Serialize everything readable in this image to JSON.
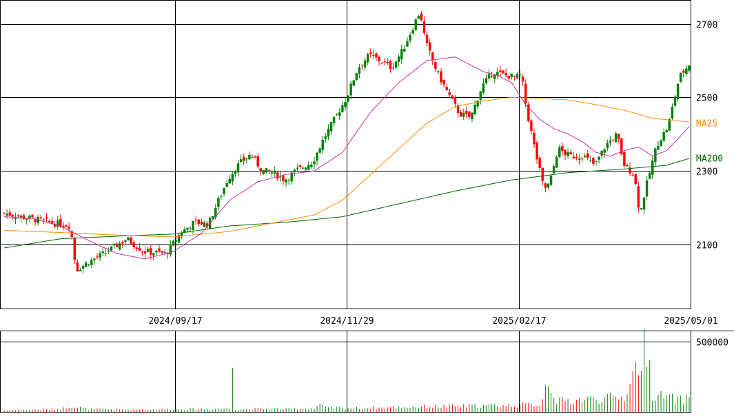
{
  "chart_data": {
    "type": "candlestick",
    "price_panel": {
      "y_ticks": [
        "2700",
        "2500",
        "2300",
        "2100"
      ],
      "y_tick_values": [
        2700,
        2500,
        2300,
        2100
      ],
      "ylim": [
        1925,
        2765
      ],
      "x_tick_labels": [
        "2024/09/17",
        "2024/11/29",
        "2025/02/17",
        "2025/05/01"
      ],
      "x_tick_indices": [
        61,
        122,
        183,
        244
      ],
      "n_bars": 244,
      "grid": true,
      "indicators": [
        {
          "name": "MA25",
          "color": "#ff8c00",
          "last_value": 2430
        },
        {
          "name": "MA200",
          "color": "#006400",
          "last_value": 2335
        }
      ],
      "ma25_anchors": [
        [
          0,
          2138
        ],
        [
          20,
          2132
        ],
        [
          40,
          2125
        ],
        [
          60,
          2120
        ],
        [
          80,
          2135
        ],
        [
          100,
          2165
        ],
        [
          110,
          2180
        ],
        [
          120,
          2220
        ],
        [
          130,
          2290
        ],
        [
          140,
          2360
        ],
        [
          150,
          2430
        ],
        [
          160,
          2475
        ],
        [
          170,
          2490
        ],
        [
          180,
          2500
        ],
        [
          190,
          2497
        ],
        [
          200,
          2493
        ],
        [
          210,
          2480
        ],
        [
          220,
          2465
        ],
        [
          230,
          2443
        ],
        [
          244,
          2432
        ]
      ],
      "ma200_anchors": [
        [
          0,
          2090
        ],
        [
          20,
          2115
        ],
        [
          40,
          2122
        ],
        [
          60,
          2128
        ],
        [
          80,
          2150
        ],
        [
          100,
          2160
        ],
        [
          120,
          2175
        ],
        [
          140,
          2210
        ],
        [
          160,
          2245
        ],
        [
          180,
          2275
        ],
        [
          200,
          2295
        ],
        [
          220,
          2305
        ],
        [
          235,
          2315
        ],
        [
          244,
          2336
        ]
      ],
      "ma_pink_anchors": [
        [
          0,
          2175
        ],
        [
          10,
          2170
        ],
        [
          20,
          2150
        ],
        [
          30,
          2110
        ],
        [
          40,
          2075
        ],
        [
          50,
          2060
        ],
        [
          60,
          2080
        ],
        [
          70,
          2130
        ],
        [
          80,
          2220
        ],
        [
          90,
          2270
        ],
        [
          100,
          2290
        ],
        [
          110,
          2300
        ],
        [
          120,
          2350
        ],
        [
          130,
          2460
        ],
        [
          140,
          2540
        ],
        [
          150,
          2600
        ],
        [
          160,
          2610
        ],
        [
          165,
          2590
        ],
        [
          170,
          2570
        ],
        [
          175,
          2560
        ],
        [
          180,
          2540
        ],
        [
          185,
          2480
        ],
        [
          190,
          2440
        ],
        [
          195,
          2415
        ],
        [
          200,
          2400
        ],
        [
          205,
          2380
        ],
        [
          210,
          2350
        ],
        [
          215,
          2340
        ],
        [
          220,
          2355
        ],
        [
          225,
          2365
        ],
        [
          230,
          2340
        ],
        [
          235,
          2355
        ],
        [
          240,
          2395
        ],
        [
          244,
          2430
        ]
      ],
      "price_anchors": [
        [
          0,
          2185
        ],
        [
          10,
          2170
        ],
        [
          20,
          2155
        ],
        [
          24,
          2150
        ],
        [
          26,
          2030
        ],
        [
          30,
          2050
        ],
        [
          36,
          2075
        ],
        [
          44,
          2115
        ],
        [
          50,
          2080
        ],
        [
          58,
          2075
        ],
        [
          63,
          2130
        ],
        [
          68,
          2160
        ],
        [
          73,
          2155
        ],
        [
          76,
          2210
        ],
        [
          80,
          2280
        ],
        [
          84,
          2320
        ],
        [
          88,
          2345
        ],
        [
          92,
          2300
        ],
        [
          96,
          2295
        ],
        [
          100,
          2275
        ],
        [
          104,
          2300
        ],
        [
          110,
          2325
        ],
        [
          114,
          2390
        ],
        [
          118,
          2445
        ],
        [
          122,
          2500
        ],
        [
          126,
          2580
        ],
        [
          130,
          2615
        ],
        [
          134,
          2600
        ],
        [
          138,
          2580
        ],
        [
          142,
          2630
        ],
        [
          146,
          2700
        ],
        [
          148,
          2735
        ],
        [
          150,
          2650
        ],
        [
          154,
          2570
        ],
        [
          158,
          2510
        ],
        [
          162,
          2455
        ],
        [
          166,
          2445
        ],
        [
          170,
          2530
        ],
        [
          174,
          2570
        ],
        [
          178,
          2560
        ],
        [
          182,
          2555
        ],
        [
          184,
          2560
        ],
        [
          186,
          2460
        ],
        [
          189,
          2350
        ],
        [
          192,
          2250
        ],
        [
          194,
          2265
        ],
        [
          197,
          2360
        ],
        [
          201,
          2340
        ],
        [
          206,
          2340
        ],
        [
          210,
          2315
        ],
        [
          214,
          2370
        ],
        [
          218,
          2400
        ],
        [
          220,
          2320
        ],
        [
          224,
          2290
        ],
        [
          226,
          2180
        ],
        [
          228,
          2250
        ],
        [
          232,
          2370
        ],
        [
          236,
          2420
        ],
        [
          240,
          2555
        ],
        [
          244,
          2595
        ],
        [
          247,
          2600
        ],
        [
          249,
          2570
        ]
      ],
      "volume_bars": 244
    },
    "volume_panel": {
      "y_ticks": [
        "500000"
      ],
      "y_tick_values": [
        500000
      ],
      "ylim": [
        0,
        560000
      ],
      "volume_anchors": [
        [
          0,
          12000
        ],
        [
          20,
          22000
        ],
        [
          24,
          45000
        ],
        [
          26,
          35000
        ],
        [
          30,
          20000
        ],
        [
          50,
          18000
        ],
        [
          70,
          22000
        ],
        [
          80,
          25000
        ],
        [
          81,
          380000
        ],
        [
          82,
          20000
        ],
        [
          110,
          25000
        ],
        [
          112,
          55000
        ],
        [
          114,
          30000
        ],
        [
          126,
          28000
        ],
        [
          150,
          40000
        ],
        [
          170,
          45000
        ],
        [
          190,
          55000
        ],
        [
          193,
          250000
        ],
        [
          196,
          80000
        ],
        [
          220,
          110000
        ],
        [
          222,
          230000
        ],
        [
          226,
          415000
        ],
        [
          228,
          520000
        ],
        [
          230,
          130000
        ],
        [
          240,
          90000
        ],
        [
          246,
          130000
        ],
        [
          249,
          60000
        ]
      ]
    }
  }
}
